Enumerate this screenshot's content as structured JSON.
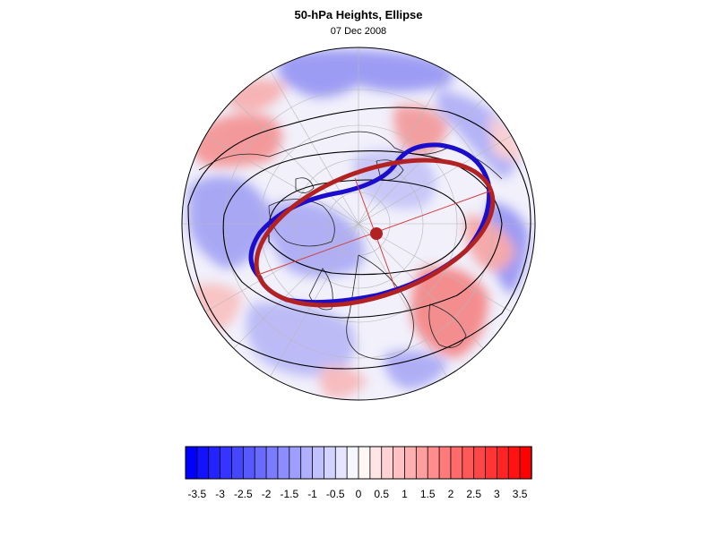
{
  "title": "50-hPa Heights, Ellipse",
  "date": "07 Dec 2008",
  "colorbar": {
    "min": -3.75,
    "max": 3.75,
    "step": 0.25,
    "labels": [
      "-3.5",
      "-3",
      "-2.5",
      "-2",
      "-1.5",
      "-1",
      "-0.5",
      "0",
      "0.5",
      "1",
      "1.5",
      "2",
      "2.5",
      "3",
      "3.5"
    ],
    "colors": {
      "negative": "#0000ff",
      "neutral": "#ffffff",
      "positive": "#ff0000"
    }
  },
  "map": {
    "projection": "polar stereographic, north pole",
    "field": "standardized 50-hPa height anomaly",
    "contour_color": "#000000",
    "height_contour_color": "#1a0dcc",
    "fitted_ellipse_color": "#b22222",
    "ellipse_center_color": "#b22222"
  }
}
